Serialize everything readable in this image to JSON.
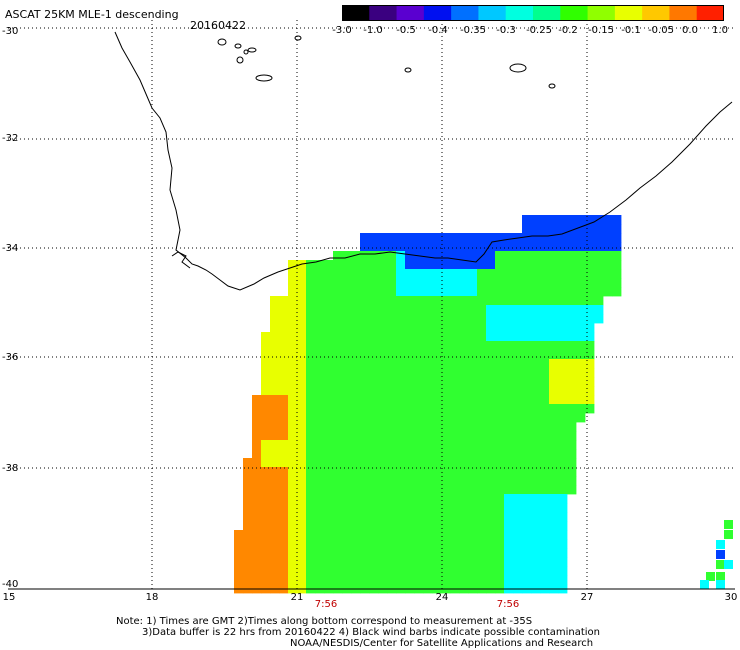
{
  "header": {
    "title": "ASCAT 25KM MLE-1 descending",
    "date": "20160422"
  },
  "colorbar": {
    "labels": [
      "-3.0",
      "-1.0",
      "-0.5",
      "-0.4",
      "-0.35",
      "-0.3",
      "-0.25",
      "-0.2",
      "-0.15",
      "-0.1",
      "-0.05",
      "0.0",
      "1.0"
    ],
    "colors": [
      "#000000",
      "#3a0080",
      "#5a00d0",
      "#0010f0",
      "#0070ff",
      "#00c8ff",
      "#00ffe0",
      "#00ff90",
      "#30ff00",
      "#90ff00",
      "#e8ff00",
      "#ffc800",
      "#ff7800",
      "#ff2000"
    ]
  },
  "axes": {
    "lat_labels": [
      "-30",
      "-32",
      "-34",
      "-36",
      "-38",
      "-40"
    ],
    "lon_labels": [
      "15",
      "18",
      "21",
      "24",
      "27",
      "30"
    ]
  },
  "times": [
    "7:56",
    "7:56"
  ],
  "notes": {
    "line1": "Note: 1) Times are GMT 2)Times along bottom correspond to measurement at -35S",
    "line2": "3)Data buffer is 22 hrs from 20160422 4) Black wind barbs indicate possible contamination",
    "line3": "NOAA/NESDIS/Center for Satellite Applications and Research"
  },
  "palette": {
    "blue": "#0040ff",
    "cyan": "#00ffff",
    "green": "#30ff30",
    "yellow": "#e8ff00",
    "orange": "#ff8800",
    "coast": "#000000"
  }
}
